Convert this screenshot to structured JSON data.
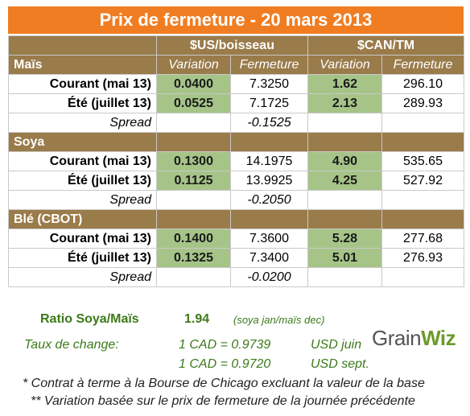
{
  "title": "Prix de fermeture - 20 mars 2013",
  "header": {
    "us_group": "$US/boisseau",
    "can_group": "$CAN/TM",
    "var_label": "Variation",
    "close_label": "Fermeture"
  },
  "sections": [
    {
      "name": "Maïs",
      "rows": [
        {
          "label": "Courant (mai 13)",
          "us_var": "0.0400",
          "us_close": "7.3250",
          "can_var": "1.62",
          "can_close": "296.10"
        },
        {
          "label": "Été (juillet 13)",
          "us_var": "0.0525",
          "us_close": "7.1725",
          "can_var": "2.13",
          "can_close": "289.93"
        }
      ],
      "spread_label": "Spread",
      "spread_value": "-0.1525"
    },
    {
      "name": "Soya",
      "rows": [
        {
          "label": "Courant (mai 13)",
          "us_var": "0.1300",
          "us_close": "14.1975",
          "can_var": "4.90",
          "can_close": "535.65"
        },
        {
          "label": "Été (juillet 13)",
          "us_var": "0.1125",
          "us_close": "13.9925",
          "can_var": "4.25",
          "can_close": "527.92"
        }
      ],
      "spread_label": "Spread",
      "spread_value": "-0.2050"
    },
    {
      "name": "Blé (CBOT)",
      "rows": [
        {
          "label": "Courant (mai 13)",
          "us_var": "0.1400",
          "us_close": "7.3600",
          "can_var": "5.28",
          "can_close": "277.68"
        },
        {
          "label": "Été (juillet 13)",
          "us_var": "0.1325",
          "us_close": "7.3400",
          "can_var": "5.01",
          "can_close": "276.93"
        }
      ],
      "spread_label": "Spread",
      "spread_value": "-0.0200"
    }
  ],
  "ratio": {
    "label": "Ratio Soya/Maïs",
    "value": "1.94",
    "note": "(soya jan/maïs dec)"
  },
  "exchange": {
    "label": "Taux de change:",
    "rate1": "1 CAD =  0.9739",
    "unit1": "USD juin",
    "rate2": "1 CAD =  0.9720",
    "unit2": "USD sept."
  },
  "logo": {
    "prefix": "Grain",
    "suffix": "Wiz"
  },
  "notes": [
    "* Contrat à terme à la Bourse de Chicago excluant la valeur de la base",
    "** Variation basée sur le prix de fermeture de la journée précédente"
  ],
  "colors": {
    "title_bg": "#f07d22",
    "header_bg": "#9a7b4a",
    "variation_bg": "#a6c488",
    "green_text": "#3c7a1a"
  }
}
